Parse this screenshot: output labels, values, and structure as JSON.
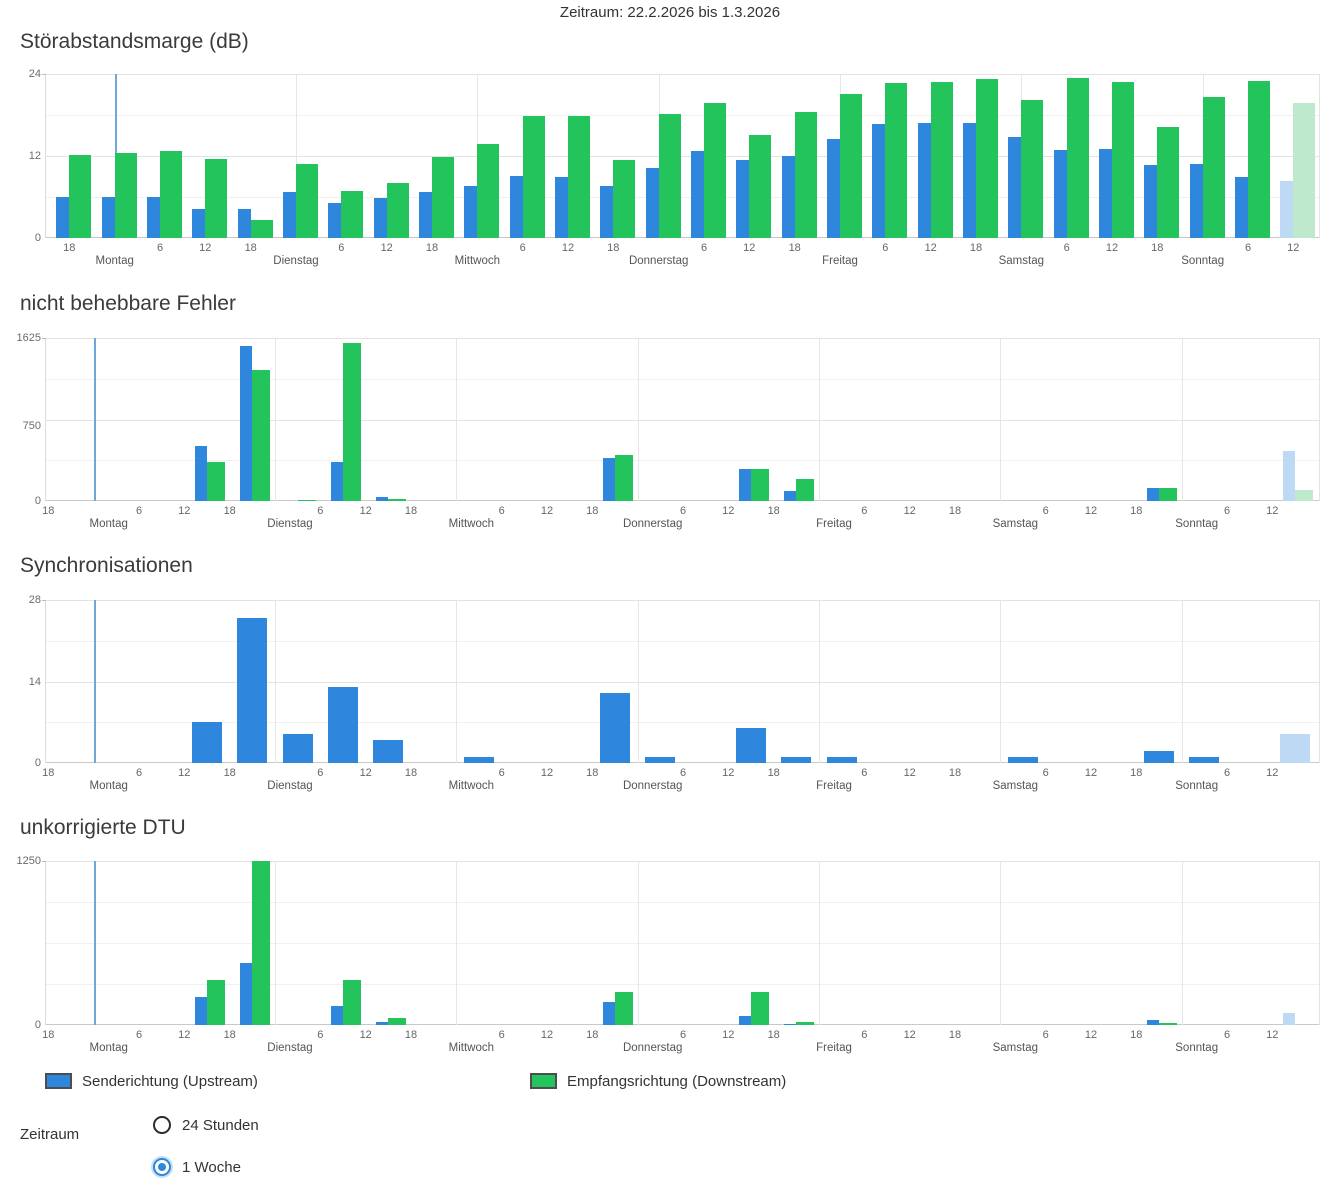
{
  "page": {
    "header": "Zeitraum: 22.2.2026 bis 1.3.2026"
  },
  "colors": {
    "upstream": "#2e87dc",
    "downstream": "#23c45c",
    "upstream_faded": "#bdd9f3",
    "downstream_faded": "#bfe9cd",
    "marker_line": "#6fa6d9",
    "grid_major": "#e3e3e3",
    "grid_minor": "#f0f0f0",
    "axis_bottom": "#c9c9c9"
  },
  "legend": {
    "items": [
      {
        "id": "upstream",
        "label": "Senderichtung (Upstream)",
        "color": "#2e87dc"
      },
      {
        "id": "downstream",
        "label": "Empfangsrichtung (Downstream)",
        "color": "#23c45c"
      }
    ]
  },
  "zeitraum_control": {
    "label": "Zeitraum",
    "options": [
      {
        "label": "24 Stunden",
        "selected": false
      },
      {
        "label": "1 Woche",
        "selected": true
      }
    ]
  },
  "chart_data": [
    {
      "type": "bar",
      "title": "Störabstandsmarge (dB)",
      "ylim": [
        0,
        24
      ],
      "yticks": [
        24,
        12,
        0
      ],
      "bin_hours": 6,
      "bar_align": "on-tick",
      "marker_at_tick": 1,
      "faded_bins": [
        27
      ],
      "xticks": [
        "18",
        "Montag",
        "6",
        "12",
        "18",
        "Dienstag",
        "6",
        "12",
        "18",
        "Mittwoch",
        "6",
        "12",
        "18",
        "Donnerstag",
        "6",
        "12",
        "18",
        "Freitag",
        "6",
        "12",
        "18",
        "Samstag",
        "6",
        "12",
        "18",
        "Sonntag",
        "6",
        "12"
      ],
      "series": [
        {
          "name": "Senderichtung (Upstream)",
          "values": [
            6,
            6,
            6,
            4.2,
            4.2,
            6.7,
            5.2,
            5.9,
            6.8,
            7.6,
            9.1,
            9,
            7.6,
            10.3,
            12.8,
            11.4,
            12,
            14.5,
            16.7,
            16.8,
            16.9,
            14.8,
            12.9,
            13,
            10.7,
            10.9,
            9,
            8.3
          ]
        },
        {
          "name": "Empfangsrichtung (Downstream)",
          "values": [
            12.1,
            12.4,
            12.8,
            11.5,
            2.7,
            10.8,
            6.9,
            8.1,
            11.9,
            13.8,
            17.8,
            17.8,
            11.4,
            18.2,
            19.7,
            15.1,
            18.5,
            21.1,
            22.7,
            22.8,
            23.3,
            20.2,
            23.4,
            22.8,
            16.2,
            20.7,
            23,
            19.8
          ]
        }
      ]
    },
    {
      "type": "bar",
      "title": "nicht behebbare Fehler",
      "ylim": [
        0,
        1625
      ],
      "yticks": [
        1625,
        750,
        0
      ],
      "bin_hours": 6,
      "bar_align": "between-ticks",
      "marker_at_tick": 1,
      "faded_bins": [
        27
      ],
      "xticks": [
        "18",
        "Montag",
        "6",
        "12",
        "18",
        "Dienstag",
        "6",
        "12",
        "18",
        "Mittwoch",
        "6",
        "12",
        "18",
        "Donnerstag",
        "6",
        "12",
        "18",
        "Freitag",
        "6",
        "12",
        "18",
        "Samstag",
        "6",
        "12",
        "18",
        "Sonntag",
        "6",
        "12"
      ],
      "series": [
        {
          "name": "Senderichtung (Upstream)",
          "values": [
            0,
            0,
            0,
            550,
            1550,
            0,
            390,
            45,
            0,
            0,
            0,
            0,
            430,
            0,
            0,
            315,
            100,
            0,
            0,
            0,
            0,
            0,
            0,
            0,
            130,
            0,
            0,
            500
          ]
        },
        {
          "name": "Empfangsrichtung (Downstream)",
          "values": [
            0,
            0,
            0,
            390,
            1310,
            15,
            1580,
            25,
            0,
            0,
            0,
            0,
            455,
            0,
            0,
            315,
            215,
            0,
            0,
            0,
            0,
            0,
            0,
            0,
            135,
            0,
            0,
            110
          ]
        }
      ]
    },
    {
      "type": "bar",
      "title": "Synchronisationen",
      "ylim": [
        0,
        28
      ],
      "yticks": [
        28,
        14,
        0
      ],
      "bin_hours": 6,
      "bar_align": "between-ticks",
      "single_series": true,
      "marker_at_tick": 1,
      "faded_bins": [
        27
      ],
      "xticks": [
        "18",
        "Montag",
        "6",
        "12",
        "18",
        "Dienstag",
        "6",
        "12",
        "18",
        "Mittwoch",
        "6",
        "12",
        "18",
        "Donnerstag",
        "6",
        "12",
        "18",
        "Freitag",
        "6",
        "12",
        "18",
        "Samstag",
        "6",
        "12",
        "18",
        "Sonntag",
        "6",
        "12"
      ],
      "series": [
        {
          "name": "Senderichtung (Upstream)",
          "values": [
            0,
            0,
            0,
            7,
            25,
            5,
            13,
            4,
            0,
            1,
            0,
            0,
            12,
            1,
            0,
            6,
            1,
            1,
            0,
            0,
            0,
            1,
            0,
            0,
            2,
            1,
            0,
            5
          ]
        }
      ]
    },
    {
      "type": "bar",
      "title": "unkorrigierte DTU",
      "ylim": [
        0,
        1250
      ],
      "yticks": [
        1250,
        0
      ],
      "bin_hours": 6,
      "bar_align": "between-ticks",
      "marker_at_tick": 1,
      "faded_bins": [
        27
      ],
      "xticks": [
        "18",
        "Montag",
        "6",
        "12",
        "18",
        "Dienstag",
        "6",
        "12",
        "18",
        "Mittwoch",
        "6",
        "12",
        "18",
        "Donnerstag",
        "6",
        "12",
        "18",
        "Freitag",
        "6",
        "12",
        "18",
        "Samstag",
        "6",
        "12",
        "18",
        "Sonntag",
        "6",
        "12"
      ],
      "series": [
        {
          "name": "Senderichtung (Upstream)",
          "values": [
            0,
            0,
            0,
            210,
            475,
            0,
            145,
            20,
            0,
            0,
            0,
            0,
            175,
            0,
            0,
            70,
            10,
            0,
            0,
            0,
            0,
            0,
            0,
            0,
            40,
            0,
            0,
            90
          ]
        },
        {
          "name": "Empfangsrichtung (Downstream)",
          "values": [
            0,
            0,
            0,
            345,
            1250,
            0,
            340,
            55,
            0,
            0,
            0,
            0,
            255,
            0,
            0,
            255,
            25,
            0,
            0,
            0,
            0,
            0,
            0,
            0,
            15,
            0,
            0,
            0
          ]
        }
      ]
    }
  ]
}
